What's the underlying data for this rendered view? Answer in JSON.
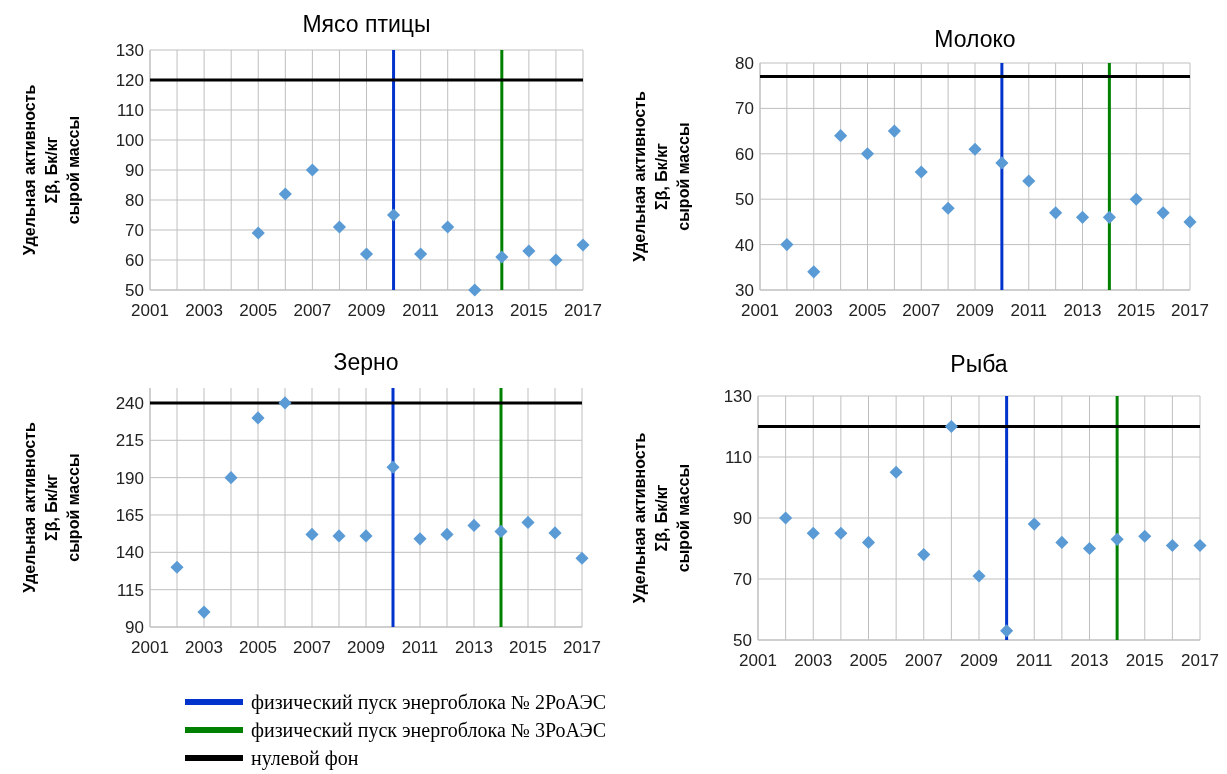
{
  "chart_data": [
    {
      "type": "scatter",
      "title": "Мясо птицы",
      "ylabel": "Удельная активность\nΣβ, Бк/кг\nсырой массы",
      "x": [
        2005,
        2006,
        2007,
        2008,
        2009,
        2010,
        2011,
        2012,
        2013,
        2014,
        2015,
        2016,
        2017
      ],
      "series": [
        {
          "color": "#5b9bd5",
          "values": [
            69,
            82,
            90,
            71,
            62,
            75,
            62,
            71,
            50,
            61,
            63,
            60,
            65
          ]
        }
      ],
      "xlim": [
        2001,
        2017
      ],
      "xticks": [
        2001,
        {
          "value": 2002,
          "label": null
        },
        2003,
        {
          "value": 2004,
          "label": null
        },
        2005,
        {
          "value": 2006,
          "label": null
        },
        2007,
        {
          "value": 2008,
          "label": null
        },
        2009,
        {
          "value": 2010,
          "label": null
        },
        2011,
        {
          "value": 2012,
          "label": null
        },
        2013,
        {
          "value": 2014,
          "label": null
        },
        2015,
        {
          "value": 2016,
          "label": null
        },
        2017
      ],
      "ylim": [
        50,
        130
      ],
      "yticks": [
        50,
        60,
        70,
        80,
        90,
        100,
        110,
        120,
        130
      ],
      "grid": true,
      "marker": "diamond",
      "legend": "bottom",
      "ref_lines": [
        {
          "axis": "x",
          "value": 2010,
          "label": "физический пуск энергоблока № 2РоАЭС",
          "color": "#0033cc"
        },
        {
          "axis": "x",
          "value": 2014,
          "label": "физический пуск энергоблока № 3РоАЭС",
          "color": "#008000"
        },
        {
          "axis": "y",
          "value": 120,
          "label": "нулевой фон",
          "color": "#000000"
        }
      ]
    },
    {
      "type": "scatter",
      "title": "Молоко",
      "ylabel": "Удельная активность\nΣβ, Бк/кг\nсырой массы",
      "x": [
        2002,
        2003,
        2004,
        2005,
        2006,
        2007,
        2008,
        2009,
        2010,
        2011,
        2012,
        2013,
        2014,
        2015,
        2016,
        2017
      ],
      "series": [
        {
          "color": "#5b9bd5",
          "values": [
            40,
            34,
            64,
            60,
            65,
            56,
            48,
            61,
            58,
            54,
            47,
            46,
            46,
            50,
            47,
            45
          ]
        }
      ],
      "xlim": [
        2001,
        2017
      ],
      "xticks": [
        2001,
        {
          "value": 2002,
          "label": null
        },
        2003,
        {
          "value": 2004,
          "label": null
        },
        2005,
        {
          "value": 2006,
          "label": null
        },
        2007,
        {
          "value": 2008,
          "label": null
        },
        2009,
        {
          "value": 2010,
          "label": null
        },
        2011,
        {
          "value": 2012,
          "label": null
        },
        2013,
        {
          "value": 2014,
          "label": null
        },
        2015,
        {
          "value": 2016,
          "label": null
        },
        2017
      ],
      "ylim": [
        30,
        80
      ],
      "yticks": [
        30,
        40,
        50,
        60,
        70,
        80
      ],
      "grid": true,
      "marker": "diamond",
      "ref_lines": [
        {
          "axis": "x",
          "value": 2010,
          "color": "#0033cc"
        },
        {
          "axis": "x",
          "value": 2014,
          "color": "#008000"
        },
        {
          "axis": "y",
          "value": 77,
          "color": "#000000"
        }
      ]
    },
    {
      "type": "scatter",
      "title": "Зерно",
      "ylabel": "Удельная активность\nΣβ, Бк/кг\nсырой массы",
      "x": [
        2002,
        2003,
        2004,
        2005,
        2006,
        2007,
        2008,
        2009,
        2010,
        2011,
        2012,
        2013,
        2014,
        2015,
        2016,
        2017
      ],
      "series": [
        {
          "color": "#5b9bd5",
          "values": [
            130,
            100,
            190,
            230,
            240,
            152,
            151,
            151,
            197,
            149,
            152,
            158,
            154,
            160,
            153,
            136
          ]
        }
      ],
      "xlim": [
        2001,
        2017
      ],
      "xticks": [
        2001,
        {
          "value": 2002,
          "label": null
        },
        2003,
        {
          "value": 2004,
          "label": null
        },
        2005,
        {
          "value": 2006,
          "label": null
        },
        2007,
        {
          "value": 2008,
          "label": null
        },
        2009,
        {
          "value": 2010,
          "label": null
        },
        2011,
        {
          "value": 2012,
          "label": null
        },
        2013,
        {
          "value": 2014,
          "label": null
        },
        2015,
        {
          "value": 2016,
          "label": null
        },
        2017
      ],
      "ylim": [
        90,
        250
      ],
      "yticks": [
        90,
        115,
        140,
        165,
        190,
        215,
        240
      ],
      "grid": true,
      "marker": "diamond",
      "ref_lines": [
        {
          "axis": "x",
          "value": 2010,
          "color": "#0033cc"
        },
        {
          "axis": "x",
          "value": 2014,
          "color": "#008000"
        },
        {
          "axis": "y",
          "value": 240,
          "color": "#000000"
        }
      ]
    },
    {
      "type": "scatter",
      "title": "Рыба",
      "ylabel": "Удельная активность\nΣβ, Бк/кг\nсырой массы",
      "x": [
        2002,
        2003,
        2004,
        2005,
        2006,
        2007,
        2008,
        2009,
        2010,
        2011,
        2012,
        2013,
        2014,
        2015,
        2016,
        2017
      ],
      "series": [
        {
          "color": "#5b9bd5",
          "values": [
            90,
            85,
            85,
            82,
            105,
            78,
            120,
            71,
            53,
            88,
            82,
            80,
            83,
            84,
            81,
            81
          ]
        }
      ],
      "xlim": [
        2001,
        2017
      ],
      "xticks": [
        2001,
        {
          "value": 2002,
          "label": null
        },
        2003,
        {
          "value": 2004,
          "label": null
        },
        2005,
        {
          "value": 2006,
          "label": null
        },
        2007,
        {
          "value": 2008,
          "label": null
        },
        2009,
        {
          "value": 2010,
          "label": null
        },
        2011,
        {
          "value": 2012,
          "label": null
        },
        2013,
        {
          "value": 2014,
          "label": null
        },
        2015,
        {
          "value": 2016,
          "label": null
        },
        2017
      ],
      "ylim": [
        50,
        130
      ],
      "yticks": [
        50,
        70,
        90,
        110,
        130
      ],
      "grid": true,
      "marker": "diamond",
      "ref_lines": [
        {
          "axis": "x",
          "value": 2010,
          "color": "#0033cc"
        },
        {
          "axis": "x",
          "value": 2014,
          "color": "#008000"
        },
        {
          "axis": "y",
          "value": 120,
          "color": "#000000"
        }
      ]
    }
  ]
}
